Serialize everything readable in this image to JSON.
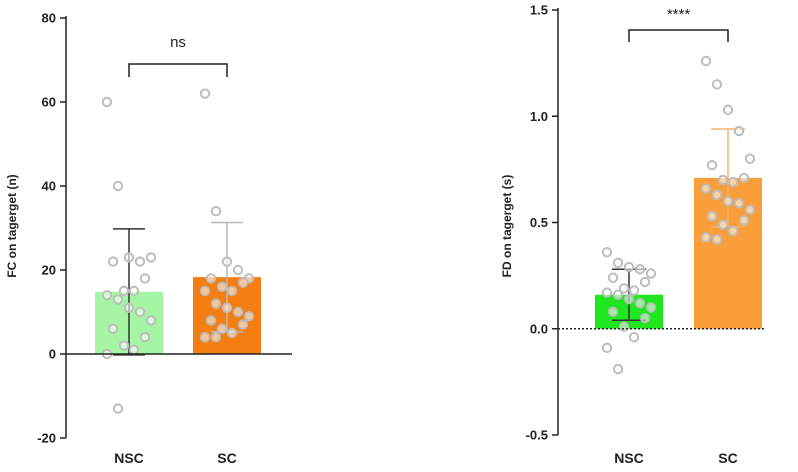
{
  "chart_data": [
    {
      "type": "bar",
      "categories": [
        "NSC",
        "SC"
      ],
      "ylabel": "FC on tagerget (n)",
      "ylim": [
        -20,
        80
      ],
      "yticks": [
        "80",
        "60",
        "40",
        "20",
        "0",
        "-20"
      ],
      "yticks_values": [
        80,
        60,
        40,
        20,
        0,
        -20
      ],
      "series": [
        {
          "values": [
            14.8,
            18.3
          ],
          "sd": [
            15.0,
            13.0
          ],
          "colors": [
            "#a5f5a5",
            "#f57e12"
          ],
          "points": [
            [
              60,
              40,
              23,
              22,
              23,
              22,
              18,
              15,
              15,
              14,
              13,
              11,
              10,
              8,
              6,
              4,
              2,
              1,
              0,
              -13
            ],
            [
              62,
              34,
              22,
              20,
              18,
              18,
              17,
              16,
              15,
              15,
              12,
              11,
              10,
              9,
              8,
              7,
              6,
              5,
              4,
              4
            ]
          ]
        }
      ],
      "significance": {
        "label": "ns",
        "pair": [
          "NSC",
          "SC"
        ]
      }
    },
    {
      "type": "bar",
      "categories": [
        "NSC",
        "SC"
      ],
      "ylabel": "FD on tagerget (s)",
      "ylim": [
        -0.5,
        1.5
      ],
      "yticks": [
        "1.5",
        "1.0",
        "0.5",
        "0.0",
        "-0.5"
      ],
      "yticks_values": [
        1.5,
        1.0,
        0.5,
        0.0,
        -0.5
      ],
      "zero_line": "dotted",
      "series": [
        {
          "values": [
            0.16,
            0.71
          ],
          "sd": [
            0.12,
            0.23
          ],
          "colors": [
            "#1fe71f",
            "#f99e3a"
          ],
          "points": [
            [
              0.36,
              0.31,
              0.29,
              0.28,
              0.26,
              0.24,
              0.22,
              0.19,
              0.18,
              0.17,
              0.16,
              0.14,
              0.12,
              0.1,
              0.08,
              0.05,
              0.01,
              -0.04,
              -0.09,
              -0.19
            ],
            [
              1.26,
              1.15,
              1.03,
              0.93,
              0.8,
              0.77,
              0.71,
              0.7,
              0.69,
              0.66,
              0.63,
              0.6,
              0.59,
              0.56,
              0.53,
              0.51,
              0.49,
              0.46,
              0.43,
              0.42
            ]
          ]
        }
      ],
      "significance": {
        "label": "****",
        "pair": [
          "NSC",
          "SC"
        ]
      }
    }
  ]
}
